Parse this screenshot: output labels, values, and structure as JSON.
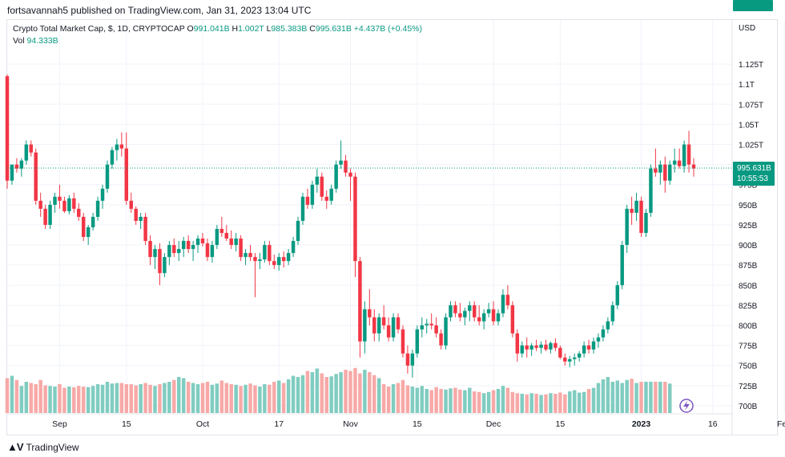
{
  "header": {
    "published": "fortsavannah5 published on TradingView.com, Jan 31, 2023 13:04 UTC"
  },
  "legend": {
    "symbol": "Crypto Total Market Cap, $, 1D, CRYPTOCAP",
    "o_label": "O",
    "o_value": "991.041B",
    "h_label": "H",
    "h_value": "1.002T",
    "l_label": "L",
    "l_value": "985.383B",
    "c_label": "C",
    "c_value": "995.631B",
    "change": "+4.437B (+0.45%)",
    "vol_label": "Vol",
    "vol_value": "94.333B"
  },
  "footer": {
    "brand": "TradingView",
    "logo_icon": "tradingview-logo-icon"
  },
  "colors": {
    "up": "#089981",
    "down": "#f23645",
    "vol_up": "#80ccc0",
    "vol_down": "#f7a9a7",
    "accent": "#089981"
  },
  "chart_data": {
    "type": "candlestick",
    "title": "Crypto Total Market Cap, $, 1D, CRYPTOCAP",
    "currency_label": "USD",
    "y_ticks": [
      "700B",
      "725B",
      "750B",
      "775B",
      "800B",
      "825B",
      "850B",
      "875B",
      "900B",
      "925B",
      "950B",
      "975B",
      "1T",
      "1.025T",
      "1.05T",
      "1.075T",
      "1.1T",
      "1.125T"
    ],
    "y_tick_values": [
      700,
      725,
      750,
      775,
      800,
      825,
      850,
      875,
      900,
      925,
      950,
      975,
      1000,
      1025,
      1050,
      1075,
      1100,
      1125
    ],
    "ylim": [
      690,
      1145
    ],
    "x_ticks": [
      {
        "label": "Sep",
        "index": 11
      },
      {
        "label": "15",
        "index": 25
      },
      {
        "label": "Oct",
        "index": 41
      },
      {
        "label": "17",
        "index": 57
      },
      {
        "label": "Nov",
        "index": 72
      },
      {
        "label": "15",
        "index": 86
      },
      {
        "label": "Dec",
        "index": 102
      },
      {
        "label": "15",
        "index": 116
      },
      {
        "label": "2023",
        "index": 133
      },
      {
        "label": "16",
        "index": 148
      },
      {
        "label": "Feb",
        "index": 163
      }
    ],
    "last_price": "995.631B",
    "last_price_value": 995.631,
    "countdown": "10:55:53",
    "last_volume": "94.333B",
    "candles": [
      [
        1110,
        1112,
        970,
        980
      ],
      [
        980,
        1000,
        975,
        1000
      ],
      [
        1000,
        1008,
        990,
        995
      ],
      [
        995,
        1008,
        985,
        1005
      ],
      [
        1005,
        1030,
        1000,
        1025
      ],
      [
        1025,
        1030,
        1010,
        1015
      ],
      [
        1015,
        1020,
        950,
        955
      ],
      [
        955,
        965,
        935,
        945
      ],
      [
        945,
        950,
        920,
        925
      ],
      [
        925,
        955,
        920,
        950
      ],
      [
        950,
        965,
        940,
        960
      ],
      [
        960,
        975,
        945,
        955
      ],
      [
        955,
        960,
        940,
        942
      ],
      [
        942,
        962,
        938,
        958
      ],
      [
        958,
        965,
        940,
        945
      ],
      [
        945,
        952,
        930,
        935
      ],
      [
        935,
        940,
        905,
        910
      ],
      [
        910,
        925,
        900,
        922
      ],
      [
        922,
        940,
        918,
        935
      ],
      [
        935,
        960,
        930,
        955
      ],
      [
        955,
        975,
        945,
        970
      ],
      [
        970,
        1005,
        965,
        1000
      ],
      [
        1000,
        1022,
        995,
        1018
      ],
      [
        1018,
        1032,
        1005,
        1025
      ],
      [
        1025,
        1040,
        1010,
        1020
      ],
      [
        1020,
        1040,
        950,
        955
      ],
      [
        955,
        965,
        940,
        945
      ],
      [
        945,
        948,
        925,
        930
      ],
      [
        930,
        940,
        920,
        935
      ],
      [
        935,
        940,
        900,
        905
      ],
      [
        905,
        912,
        875,
        885
      ],
      [
        885,
        900,
        870,
        895
      ],
      [
        895,
        902,
        850,
        865
      ],
      [
        865,
        890,
        860,
        885
      ],
      [
        885,
        905,
        875,
        900
      ],
      [
        900,
        908,
        885,
        890
      ],
      [
        890,
        905,
        880,
        895
      ],
      [
        895,
        910,
        885,
        905
      ],
      [
        905,
        912,
        890,
        895
      ],
      [
        895,
        905,
        880,
        900
      ],
      [
        900,
        912,
        890,
        908
      ],
      [
        908,
        915,
        898,
        902
      ],
      [
        902,
        908,
        880,
        885
      ],
      [
        885,
        905,
        878,
        900
      ],
      [
        900,
        925,
        895,
        920
      ],
      [
        920,
        935,
        910,
        915
      ],
      [
        915,
        925,
        905,
        908
      ],
      [
        908,
        918,
        895,
        900
      ],
      [
        900,
        915,
        892,
        908
      ],
      [
        908,
        912,
        880,
        885
      ],
      [
        885,
        895,
        875,
        890
      ],
      [
        890,
        900,
        880,
        885
      ],
      [
        885,
        890,
        835,
        880
      ],
      [
        880,
        890,
        870,
        882
      ],
      [
        882,
        905,
        878,
        900
      ],
      [
        900,
        905,
        875,
        880
      ],
      [
        880,
        888,
        870,
        875
      ],
      [
        875,
        890,
        868,
        885
      ],
      [
        885,
        892,
        872,
        880
      ],
      [
        880,
        895,
        875,
        890
      ],
      [
        890,
        910,
        885,
        905
      ],
      [
        905,
        935,
        900,
        930
      ],
      [
        930,
        965,
        925,
        960
      ],
      [
        960,
        970,
        945,
        950
      ],
      [
        950,
        980,
        945,
        975
      ],
      [
        975,
        995,
        965,
        985
      ],
      [
        985,
        990,
        955,
        960
      ],
      [
        960,
        968,
        945,
        955
      ],
      [
        955,
        975,
        950,
        970
      ],
      [
        970,
        1005,
        965,
        1000
      ],
      [
        1000,
        1030,
        995,
        1005
      ],
      [
        1005,
        1012,
        985,
        990
      ],
      [
        990,
        995,
        955,
        985
      ],
      [
        985,
        990,
        860,
        880
      ],
      [
        880,
        885,
        760,
        780
      ],
      [
        780,
        830,
        765,
        820
      ],
      [
        820,
        845,
        800,
        810
      ],
      [
        810,
        820,
        780,
        790
      ],
      [
        790,
        815,
        780,
        810
      ],
      [
        810,
        825,
        795,
        800
      ],
      [
        800,
        810,
        780,
        785
      ],
      [
        785,
        815,
        780,
        810
      ],
      [
        810,
        815,
        790,
        795
      ],
      [
        795,
        800,
        760,
        765
      ],
      [
        765,
        775,
        740,
        750
      ],
      [
        750,
        770,
        735,
        765
      ],
      [
        765,
        800,
        760,
        795
      ],
      [
        795,
        810,
        785,
        800
      ],
      [
        800,
        808,
        790,
        802
      ],
      [
        802,
        815,
        795,
        800
      ],
      [
        800,
        810,
        785,
        790
      ],
      [
        790,
        795,
        770,
        775
      ],
      [
        775,
        815,
        770,
        810
      ],
      [
        810,
        830,
        805,
        825
      ],
      [
        825,
        830,
        810,
        815
      ],
      [
        815,
        828,
        805,
        810
      ],
      [
        810,
        822,
        800,
        818
      ],
      [
        818,
        830,
        805,
        825
      ],
      [
        825,
        830,
        805,
        810
      ],
      [
        810,
        825,
        800,
        805
      ],
      [
        805,
        820,
        795,
        815
      ],
      [
        815,
        828,
        810,
        820
      ],
      [
        820,
        830,
        800,
        805
      ],
      [
        805,
        820,
        800,
        815
      ],
      [
        815,
        845,
        810,
        838
      ],
      [
        838,
        850,
        820,
        825
      ],
      [
        825,
        830,
        785,
        790
      ],
      [
        790,
        795,
        755,
        765
      ],
      [
        765,
        780,
        760,
        775
      ],
      [
        775,
        785,
        760,
        770
      ],
      [
        770,
        778,
        762,
        775
      ],
      [
        775,
        782,
        768,
        772
      ],
      [
        772,
        780,
        765,
        776
      ],
      [
        776,
        782,
        768,
        770
      ],
      [
        770,
        780,
        765,
        778
      ],
      [
        778,
        784,
        768,
        772
      ],
      [
        772,
        775,
        758,
        760
      ],
      [
        760,
        765,
        750,
        755
      ],
      [
        755,
        762,
        748,
        758
      ],
      [
        758,
        765,
        750,
        760
      ],
      [
        760,
        768,
        755,
        765
      ],
      [
        765,
        780,
        760,
        775
      ],
      [
        775,
        782,
        765,
        770
      ],
      [
        770,
        785,
        765,
        780
      ],
      [
        780,
        790,
        772,
        785
      ],
      [
        785,
        800,
        780,
        795
      ],
      [
        795,
        810,
        790,
        805
      ],
      [
        805,
        830,
        800,
        825
      ],
      [
        825,
        855,
        820,
        850
      ],
      [
        850,
        905,
        845,
        900
      ],
      [
        900,
        950,
        890,
        945
      ],
      [
        945,
        960,
        925,
        940
      ],
      [
        940,
        965,
        930,
        955
      ],
      [
        955,
        960,
        910,
        915
      ],
      [
        915,
        945,
        910,
        940
      ],
      [
        940,
        1000,
        935,
        995
      ],
      [
        995,
        1020,
        985,
        990
      ],
      [
        990,
        1005,
        975,
        1000
      ],
      [
        1000,
        1010,
        965,
        980
      ],
      [
        980,
        1005,
        975,
        1000
      ],
      [
        1000,
        1020,
        990,
        1005
      ],
      [
        1005,
        1020,
        995,
        998
      ],
      [
        998,
        1030,
        990,
        1025
      ],
      [
        1025,
        1042,
        990,
        1000
      ],
      [
        1000,
        1008,
        985,
        995
      ]
    ],
    "volumes": [
      58,
      62,
      55,
      45,
      52,
      50,
      48,
      55,
      46,
      45,
      44,
      48,
      42,
      44,
      43,
      45,
      44,
      43,
      45,
      48,
      47,
      52,
      49,
      50,
      50,
      48,
      48,
      46,
      48,
      50,
      47,
      45,
      48,
      50,
      52,
      55,
      60,
      58,
      52,
      50,
      48,
      50,
      52,
      47,
      49,
      54,
      50,
      48,
      47,
      45,
      47,
      49,
      46,
      44,
      48,
      47,
      52,
      54,
      50,
      56,
      62,
      60,
      63,
      70,
      68,
      74,
      66,
      60,
      61,
      65,
      68,
      72,
      70,
      75,
      66,
      72,
      68,
      63,
      58,
      48,
      44,
      48,
      50,
      55,
      46,
      44,
      42,
      45,
      40,
      38,
      43,
      40,
      39,
      41,
      42,
      39,
      38,
      42,
      36,
      35,
      33,
      35,
      38,
      40,
      45,
      42,
      35,
      33,
      32,
      31,
      33,
      32,
      30,
      31,
      33,
      32,
      34,
      31,
      36,
      38,
      34,
      35,
      40,
      42,
      50,
      56,
      60,
      52,
      54,
      50,
      55,
      57,
      50,
      52,
      52,
      52,
      52,
      52,
      52,
      49
    ]
  }
}
